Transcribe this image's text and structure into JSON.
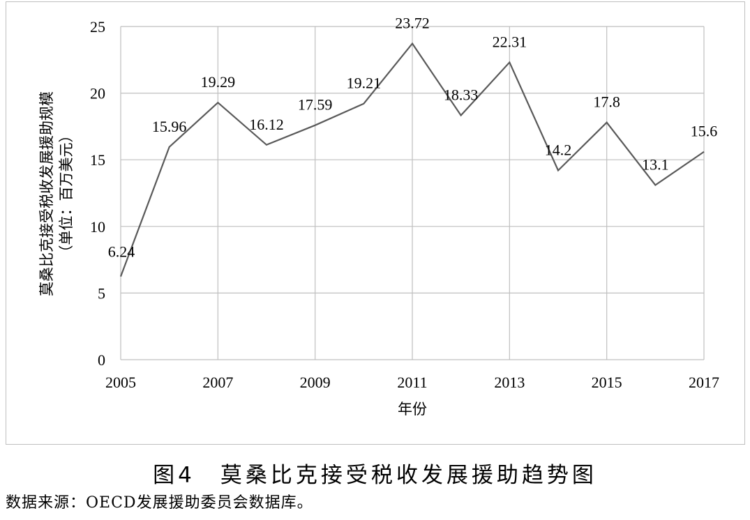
{
  "chart_data": {
    "type": "line",
    "title": "图4　莫桑比克接受税收发展援助趋势图",
    "source": "数据来源：OECD发展援助委员会数据库。",
    "xlabel": "年份",
    "ylabel": "莫桑比克接受税收发展援助规模",
    "ylabel_unit": "（单位：百万美元）",
    "x": [
      2005,
      2006,
      2007,
      2008,
      2009,
      2010,
      2011,
      2012,
      2013,
      2014,
      2015,
      2016,
      2017
    ],
    "x_tick_labels": [
      "2005",
      "2007",
      "2009",
      "2011",
      "2013",
      "2015",
      "2017"
    ],
    "y_tick_labels": [
      "0",
      "5",
      "10",
      "15",
      "20",
      "25"
    ],
    "series": [
      {
        "values": [
          6.24,
          15.96,
          19.29,
          16.12,
          17.59,
          19.21,
          23.72,
          18.33,
          22.31,
          14.2,
          17.8,
          13.1,
          15.6
        ],
        "data_labels": [
          "6.24",
          "15.96",
          "19.29",
          "16.12",
          "17.59",
          "19.21",
          "23.72",
          "18.33",
          "22.31",
          "14.2",
          "17.8",
          "13.1",
          "15.6"
        ]
      }
    ],
    "xlim": [
      2005,
      2017
    ],
    "ylim": [
      0,
      25
    ],
    "grid": true,
    "line_color": "#595959",
    "grid_color": "#bfbfbf"
  }
}
